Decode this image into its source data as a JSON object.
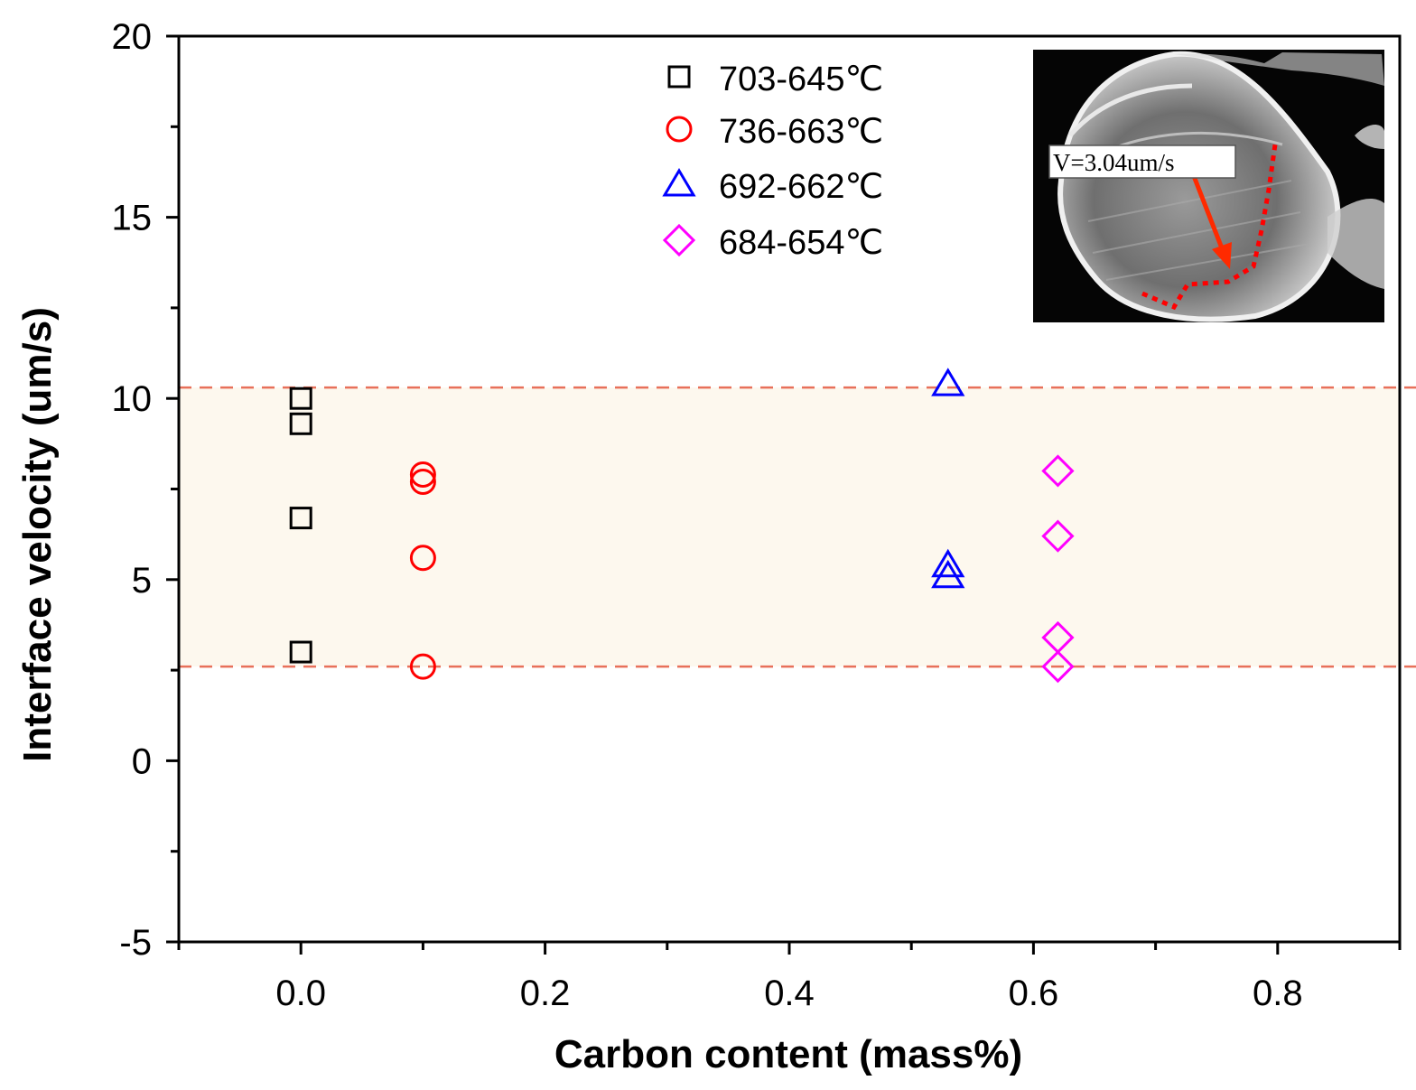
{
  "chart_data": {
    "type": "scatter",
    "title": "",
    "xlabel": "Carbon content (mass%)",
    "ylabel": "Interface velocity (um/s)",
    "xlim": [
      -0.1,
      0.9
    ],
    "ylim": [
      -5,
      20
    ],
    "xticks": [
      0.0,
      0.2,
      0.4,
      0.6,
      0.8
    ],
    "xtick_labels": [
      "0.0",
      "0.2",
      "0.4",
      "0.6",
      "0.8"
    ],
    "yticks": [
      -5,
      0,
      5,
      10,
      15,
      20
    ],
    "ytick_labels": [
      "-5",
      "0",
      "5",
      "10",
      "15",
      "20"
    ],
    "grid": false,
    "legend_position": "top-center",
    "series": [
      {
        "name": "703-645℃",
        "marker": "square",
        "color": "#000000",
        "x": [
          0.0,
          0.0,
          0.0,
          0.0
        ],
        "y": [
          10.0,
          9.3,
          6.7,
          3.0
        ]
      },
      {
        "name": "736-663℃",
        "marker": "circle",
        "color": "#ff0000",
        "x": [
          0.1,
          0.1,
          0.1,
          0.1
        ],
        "y": [
          7.9,
          7.7,
          5.6,
          2.6
        ]
      },
      {
        "name": "692-662℃",
        "marker": "triangle",
        "color": "#0000ff",
        "x": [
          0.53,
          0.53,
          0.53
        ],
        "y": [
          10.4,
          5.4,
          5.1
        ]
      },
      {
        "name": "684-654℃",
        "marker": "diamond",
        "color": "#ff00ff",
        "x": [
          0.62,
          0.62,
          0.62,
          0.62
        ],
        "y": [
          8.0,
          6.2,
          3.4,
          2.6
        ]
      }
    ],
    "band": {
      "y_min": 2.6,
      "y_max": 10.3,
      "fill": "#fdf8ee",
      "line_color": "#e8705a"
    },
    "inset": {
      "label": "V=3.04um/s",
      "arrow_color": "#ff2a00",
      "boundary_color": "#ff0000"
    }
  }
}
